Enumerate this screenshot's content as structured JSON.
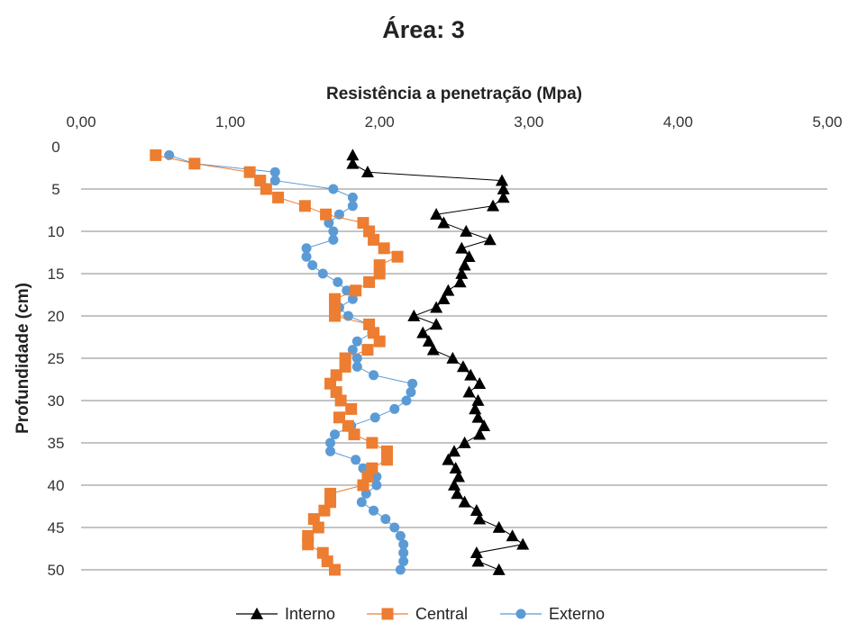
{
  "chart_data": {
    "type": "scatter",
    "title": "Área: 3",
    "xlabel": "Resistência a penetração (Mpa)",
    "ylabel": "Profundidade (cm)",
    "xlim": [
      0,
      5
    ],
    "ylim": [
      0,
      50
    ],
    "y_inverted": true,
    "x_axis_position": "top",
    "x_ticks": [
      "0,00",
      "1,00",
      "2,00",
      "3,00",
      "4,00",
      "5,00"
    ],
    "y_ticks": [
      "0",
      "5",
      "10",
      "15",
      "20",
      "25",
      "30",
      "35",
      "40",
      "45",
      "50"
    ],
    "grid": "horizontal",
    "legend_position": "bottom",
    "series": [
      {
        "name": "Interno",
        "color": "#000000",
        "marker": "triangle",
        "points": [
          [
            1.82,
            1
          ],
          [
            1.82,
            2
          ],
          [
            1.92,
            3
          ],
          [
            2.82,
            4
          ],
          [
            2.83,
            5
          ],
          [
            2.83,
            6
          ],
          [
            2.76,
            7
          ],
          [
            2.38,
            8
          ],
          [
            2.43,
            9
          ],
          [
            2.58,
            10
          ],
          [
            2.74,
            11
          ],
          [
            2.55,
            12
          ],
          [
            2.6,
            13
          ],
          [
            2.57,
            14
          ],
          [
            2.55,
            15
          ],
          [
            2.54,
            16
          ],
          [
            2.46,
            17
          ],
          [
            2.43,
            18
          ],
          [
            2.38,
            19
          ],
          [
            2.23,
            20
          ],
          [
            2.38,
            21
          ],
          [
            2.29,
            22
          ],
          [
            2.33,
            23
          ],
          [
            2.36,
            24
          ],
          [
            2.49,
            25
          ],
          [
            2.56,
            26
          ],
          [
            2.61,
            27
          ],
          [
            2.67,
            28
          ],
          [
            2.6,
            29
          ],
          [
            2.66,
            30
          ],
          [
            2.64,
            31
          ],
          [
            2.66,
            32
          ],
          [
            2.7,
            33
          ],
          [
            2.67,
            34
          ],
          [
            2.57,
            35
          ],
          [
            2.5,
            36
          ],
          [
            2.46,
            37
          ],
          [
            2.51,
            38
          ],
          [
            2.53,
            39
          ],
          [
            2.5,
            40
          ],
          [
            2.52,
            41
          ],
          [
            2.57,
            42
          ],
          [
            2.65,
            43
          ],
          [
            2.67,
            44
          ],
          [
            2.8,
            45
          ],
          [
            2.89,
            46
          ],
          [
            2.96,
            47
          ],
          [
            2.65,
            48
          ],
          [
            2.66,
            49
          ],
          [
            2.8,
            50
          ]
        ]
      },
      {
        "name": "Central",
        "color": "#ED7D31",
        "marker": "square",
        "points": [
          [
            0.5,
            1
          ],
          [
            0.76,
            2
          ],
          [
            1.13,
            3
          ],
          [
            1.2,
            4
          ],
          [
            1.24,
            5
          ],
          [
            1.32,
            6
          ],
          [
            1.5,
            7
          ],
          [
            1.64,
            8
          ],
          [
            1.89,
            9
          ],
          [
            1.93,
            10
          ],
          [
            1.96,
            11
          ],
          [
            2.03,
            12
          ],
          [
            2.12,
            13
          ],
          [
            2.0,
            14
          ],
          [
            2.0,
            15
          ],
          [
            1.93,
            16
          ],
          [
            1.84,
            17
          ],
          [
            1.7,
            18
          ],
          [
            1.7,
            19
          ],
          [
            1.7,
            20
          ],
          [
            1.93,
            21
          ],
          [
            1.96,
            22
          ],
          [
            2.0,
            23
          ],
          [
            1.92,
            24
          ],
          [
            1.77,
            25
          ],
          [
            1.77,
            26
          ],
          [
            1.71,
            27
          ],
          [
            1.67,
            28
          ],
          [
            1.71,
            29
          ],
          [
            1.74,
            30
          ],
          [
            1.81,
            31
          ],
          [
            1.73,
            32
          ],
          [
            1.79,
            33
          ],
          [
            1.83,
            34
          ],
          [
            1.95,
            35
          ],
          [
            2.05,
            36
          ],
          [
            2.05,
            37
          ],
          [
            1.95,
            38
          ],
          [
            1.92,
            39
          ],
          [
            1.89,
            40
          ],
          [
            1.67,
            41
          ],
          [
            1.67,
            42
          ],
          [
            1.63,
            43
          ],
          [
            1.56,
            44
          ],
          [
            1.59,
            45
          ],
          [
            1.52,
            46
          ],
          [
            1.52,
            47
          ],
          [
            1.62,
            48
          ],
          [
            1.65,
            49
          ],
          [
            1.7,
            50
          ]
        ]
      },
      {
        "name": "Externo",
        "color": "#5B9BD5",
        "marker": "circle",
        "points": [
          [
            0.59,
            1
          ],
          [
            0.76,
            2
          ],
          [
            1.3,
            3
          ],
          [
            1.3,
            4
          ],
          [
            1.69,
            5
          ],
          [
            1.82,
            6
          ],
          [
            1.82,
            7
          ],
          [
            1.73,
            8
          ],
          [
            1.66,
            9
          ],
          [
            1.69,
            10
          ],
          [
            1.69,
            11
          ],
          [
            1.51,
            12
          ],
          [
            1.51,
            13
          ],
          [
            1.55,
            14
          ],
          [
            1.62,
            15
          ],
          [
            1.72,
            16
          ],
          [
            1.78,
            17
          ],
          [
            1.82,
            18
          ],
          [
            1.73,
            19
          ],
          [
            1.79,
            20
          ],
          [
            1.93,
            21
          ],
          [
            1.95,
            22
          ],
          [
            1.85,
            23
          ],
          [
            1.82,
            24
          ],
          [
            1.85,
            25
          ],
          [
            1.85,
            26
          ],
          [
            1.96,
            27
          ],
          [
            2.22,
            28
          ],
          [
            2.21,
            29
          ],
          [
            2.18,
            30
          ],
          [
            2.1,
            31
          ],
          [
            1.97,
            32
          ],
          [
            1.81,
            33
          ],
          [
            1.7,
            34
          ],
          [
            1.67,
            35
          ],
          [
            1.67,
            36
          ],
          [
            1.84,
            37
          ],
          [
            1.89,
            38
          ],
          [
            1.98,
            39
          ],
          [
            1.98,
            40
          ],
          [
            1.91,
            41
          ],
          [
            1.88,
            42
          ],
          [
            1.96,
            43
          ],
          [
            2.04,
            44
          ],
          [
            2.1,
            45
          ],
          [
            2.14,
            46
          ],
          [
            2.16,
            47
          ],
          [
            2.16,
            48
          ],
          [
            2.16,
            49
          ],
          [
            2.14,
            50
          ]
        ]
      }
    ]
  }
}
